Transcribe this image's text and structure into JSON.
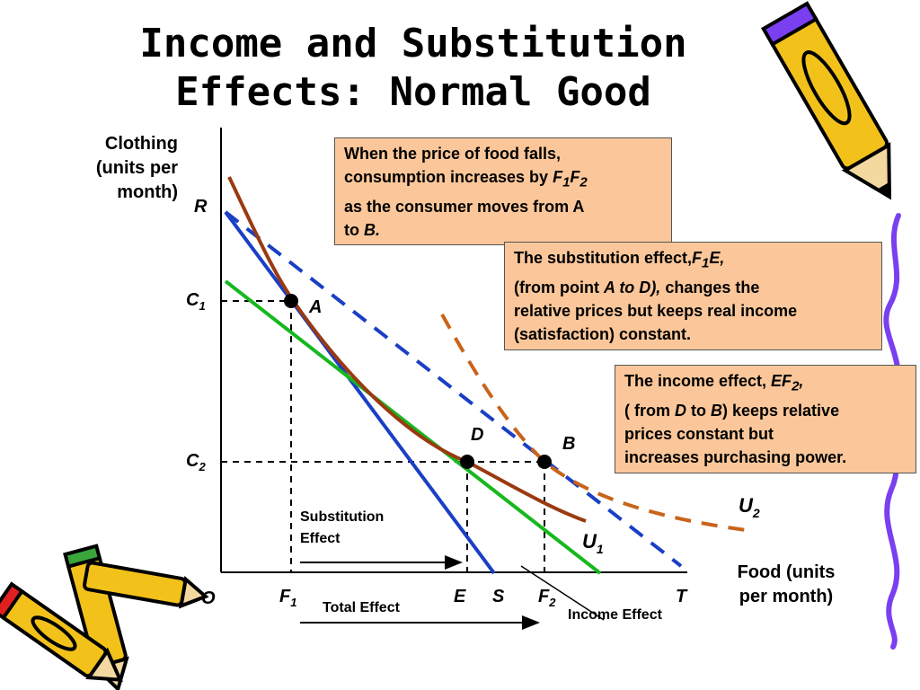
{
  "title": {
    "line1": "Income and Substitution",
    "line2": "Effects: Normal Good"
  },
  "axes": {
    "y_label": [
      "Clothing",
      "(units per",
      "month)"
    ],
    "x_label": [
      "Food (units",
      "per month)"
    ]
  },
  "point_labels": {
    "R": "R",
    "O": "O",
    "A": "A",
    "B": "B",
    "D": "D",
    "E": "E",
    "S": "S",
    "T": "T"
  },
  "subscript_labels": {
    "C1": {
      "main": "C",
      "sub": "1"
    },
    "C2": {
      "main": "C",
      "sub": "2"
    },
    "F1": {
      "main": "F",
      "sub": "1"
    },
    "F2": {
      "main": "F",
      "sub": "2"
    },
    "U1": {
      "main": "U",
      "sub": "1"
    },
    "U2": {
      "main": "U",
      "sub": "2"
    }
  },
  "annotations": {
    "substitution_effect": [
      "Substitution",
      "Effect"
    ],
    "total_effect": "Total Effect",
    "income_effect": "Income Effect"
  },
  "boxes": {
    "box1": {
      "line1": "When the price of food falls,",
      "line2_pre": "consumption increases by ",
      "line2_F1": "F",
      "line2_F1_sub": "1",
      "line2_F2": "F",
      "line2_F2_sub": "2",
      "line3": "as the consumer moves from  A",
      "line4_pre": "to ",
      "line4_B": "B."
    },
    "box2": {
      "line1_pre": "The substitution effect,",
      "line1_F": "F",
      "line1_sub": "1",
      "line1_E": "E,",
      "line2_pre": "(from point ",
      "line2_it": "A to D",
      "line2_post": "),",
      "line2_rest": "  changes the",
      "line3": "relative prices but keeps real income",
      "line4": "(satisfaction) constant."
    },
    "box3": {
      "line1_pre": "The income effect, ",
      "line1_EF": "EF",
      "line1_sub": "2",
      "line1_post": ",",
      "line2_pre": "( from ",
      "line2_D": "D",
      "line2_mid": " to ",
      "line2_B": "B",
      "line2_post": ") keeps relative",
      "line3": "prices constant but",
      "line4": "increases purchasing power."
    }
  },
  "colors": {
    "budget_original": "#1a3fc4",
    "budget_new": "#1a3fc4",
    "budget_compensated": "#16b81e",
    "indifference_u1": "#9a3a10",
    "indifference_u2": "#c8641a",
    "box_fill": "#fbc79a"
  },
  "icons": [
    "pencil-icon-top-right",
    "pencil-icon-bottom-left",
    "squiggle-border-right"
  ]
}
